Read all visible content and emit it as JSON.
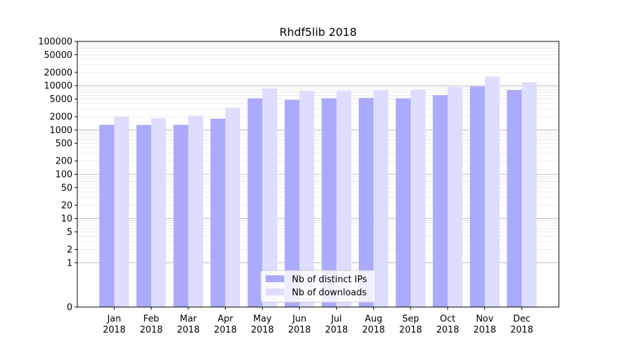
{
  "chart_data": {
    "type": "bar",
    "title": "Rhdf5lib 2018",
    "scale": "symlog",
    "categories": [
      "Jan\n2018",
      "Feb\n2018",
      "Mar\n2018",
      "Apr\n2018",
      "May\n2018",
      "Jun\n2018",
      "Jul\n2018",
      "Aug\n2018",
      "Sep\n2018",
      "Oct\n2018",
      "Nov\n2018",
      "Dec\n2018"
    ],
    "series": [
      {
        "name": "Nb of distinct IPs",
        "color": "#aaaaff",
        "values": [
          1300,
          1300,
          1300,
          1800,
          5200,
          4800,
          5200,
          5300,
          5200,
          6100,
          9600,
          8000
        ]
      },
      {
        "name": "Nb of downloads",
        "color": "#ddddff",
        "values": [
          2000,
          1850,
          2100,
          3200,
          8600,
          7600,
          7700,
          7900,
          8200,
          9400,
          16000,
          12000
        ]
      }
    ],
    "yticks": [
      0,
      1,
      2,
      5,
      10,
      20,
      50,
      100,
      200,
      500,
      1000,
      2000,
      5000,
      10000,
      20000,
      50000,
      100000
    ],
    "ylim": [
      0,
      100000
    ],
    "grid": true,
    "legend_position": "bottom-center"
  }
}
